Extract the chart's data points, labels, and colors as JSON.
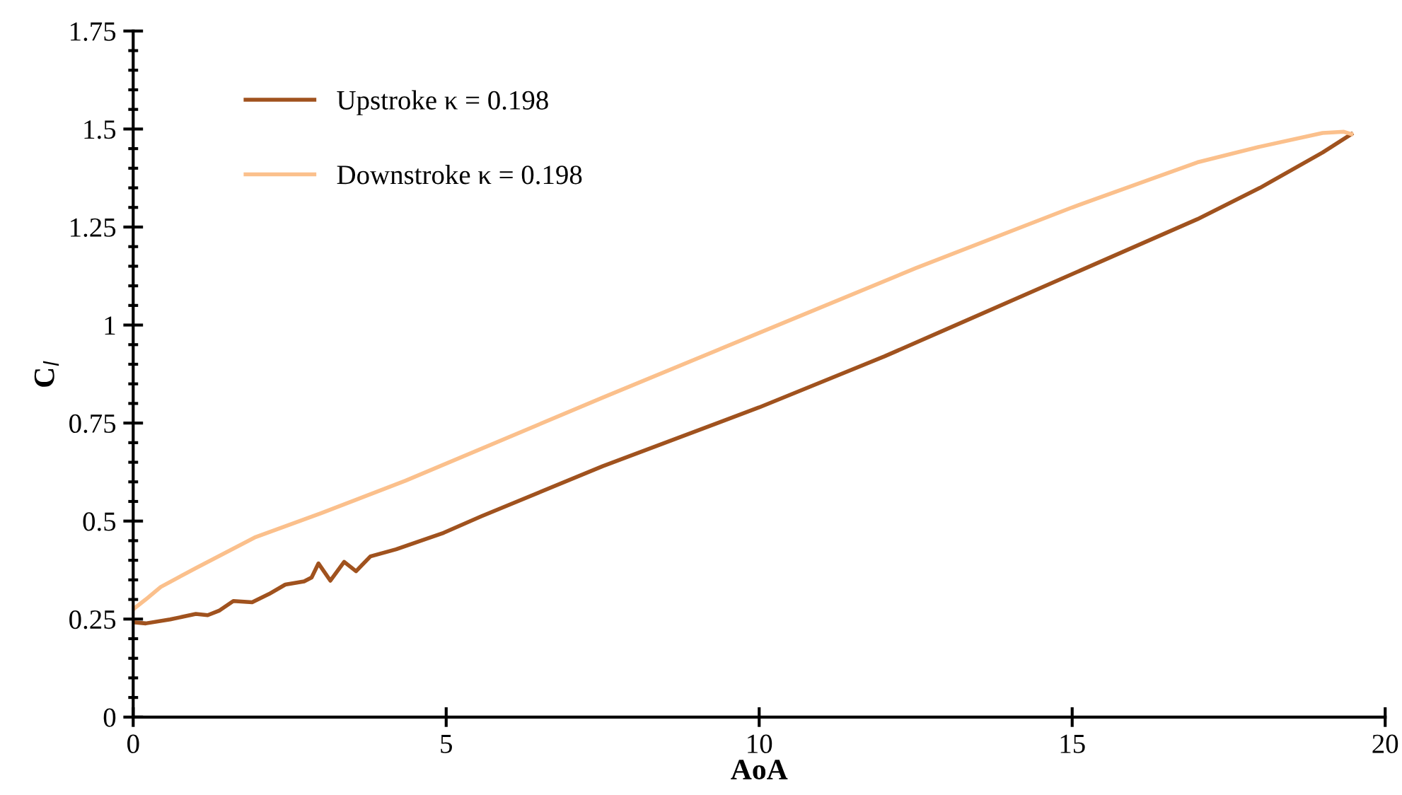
{
  "chart_data": {
    "type": "line",
    "xlabel": "AoA",
    "ylabel": "C$_{l}$",
    "xlim": [
      0,
      20
    ],
    "ylim": [
      0,
      1.75
    ],
    "xticks": [
      0,
      5,
      10,
      15,
      20
    ],
    "yticks": [
      0,
      0.25,
      0.5,
      0.75,
      1,
      1.25,
      1.5,
      1.75
    ],
    "grid": false,
    "legend": "top left",
    "marker": "none",
    "line_style": "solid",
    "series": [
      {
        "name": "Upstroke κ = 0.198",
        "color": "#a0521e",
        "x": [
          0,
          0.2,
          0.59,
          1.0,
          1.19,
          1.38,
          1.6,
          1.9,
          2.17,
          2.43,
          2.73,
          2.85,
          2.96,
          3.15,
          3.37,
          3.56,
          3.79,
          4.2,
          4.96,
          5.56,
          7.5,
          10,
          12,
          13,
          15,
          17,
          18,
          19,
          19.46
        ],
        "values": [
          0.242,
          0.239,
          0.249,
          0.263,
          0.26,
          0.272,
          0.296,
          0.293,
          0.314,
          0.338,
          0.346,
          0.356,
          0.392,
          0.348,
          0.396,
          0.372,
          0.41,
          0.428,
          0.47,
          0.512,
          0.64,
          0.79,
          0.92,
          0.99,
          1.13,
          1.27,
          1.35,
          1.44,
          1.487
        ]
      },
      {
        "name": "Downstroke κ = 0.198",
        "color": "#fbc08c",
        "x": [
          19.46,
          19.34,
          19.0,
          18,
          17,
          15,
          12.5,
          10,
          7.5,
          4.35,
          3,
          1.94,
          1,
          0.44,
          0.2,
          0
        ],
        "values": [
          1.487,
          1.493,
          1.49,
          1.455,
          1.415,
          1.3,
          1.145,
          0.98,
          0.815,
          0.603,
          0.52,
          0.458,
          0.38,
          0.332,
          0.3,
          0.275
        ]
      }
    ]
  }
}
